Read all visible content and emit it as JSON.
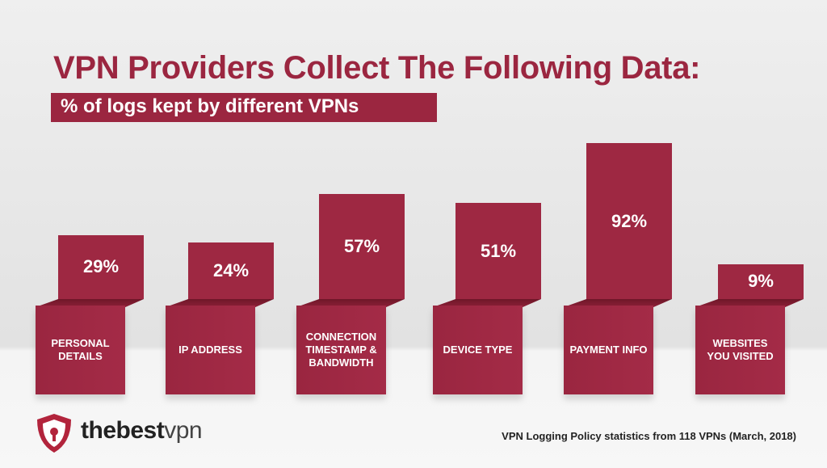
{
  "chart_data": {
    "type": "bar",
    "title": "VPN Providers Collect The Following Data:",
    "subtitle": "% of logs kept by different VPNs",
    "categories": [
      "PERSONAL DETAILS",
      "IP ADDRESS",
      "CONNECTION TIMESTAMP & BANDWIDTH",
      "DEVICE TYPE",
      "PAYMENT INFO",
      "WEBSITES YOU VISITED"
    ],
    "values": [
      29,
      24,
      57,
      51,
      92,
      9
    ],
    "value_labels": [
      "29%",
      "24%",
      "57%",
      "51%",
      "92%",
      "9%"
    ],
    "color": "#9e2842",
    "footnote": "VPN Logging Policy statistics from 118 VPNs (March, 2018)",
    "brand_bold": "thebest",
    "brand_light": "vpn"
  }
}
